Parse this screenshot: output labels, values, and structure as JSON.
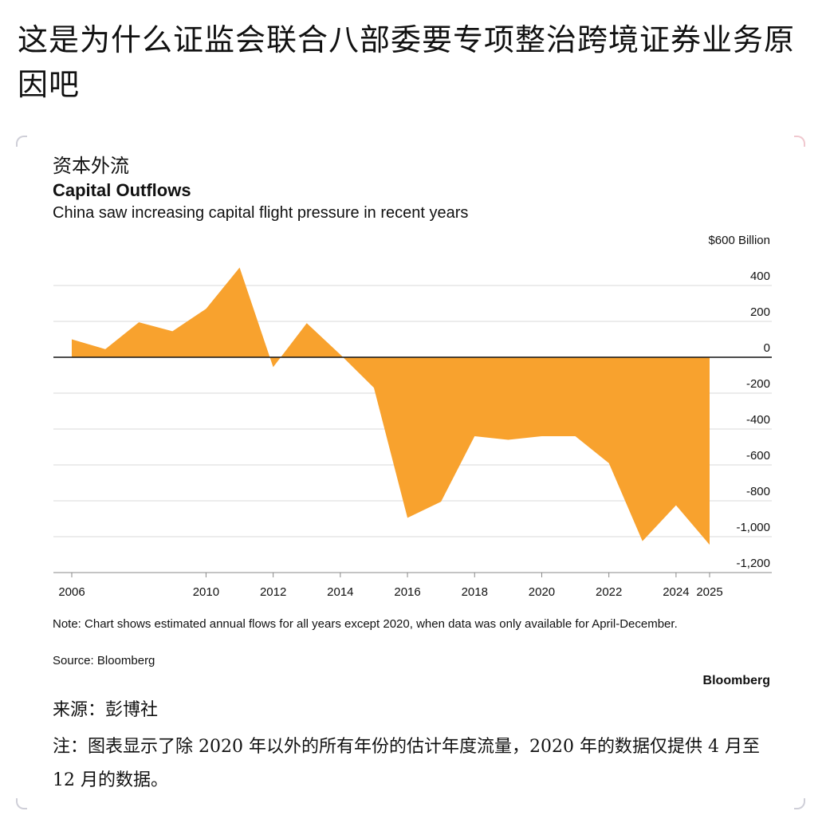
{
  "post": {
    "title": "这是为什么证监会联合八部委要专项整治跨境证券业务原因吧"
  },
  "image_text": {
    "zh_title": "资本外流",
    "zh_source": "来源：彭博社",
    "zh_note": "注：图表显示了除 2020 年以外的所有年份的估计年度流量，2020 年的数据仅提供 4 月至 12 月的数据。"
  },
  "colors": {
    "area_fill": "#F8A22E",
    "grid": "#d9d9d9",
    "zero_line": "#111111",
    "text": "#111111"
  },
  "chart_data": {
    "type": "area",
    "title": "Capital Outflows",
    "subtitle": "China saw increasing capital flight pressure in recent years",
    "unit_label": "$600 Billion",
    "ylim": [
      -1200,
      600
    ],
    "yticks": [
      600,
      400,
      200,
      0,
      -200,
      -400,
      -600,
      -800,
      -1000,
      -1200
    ],
    "ytick_labels": [
      "$600 Billion",
      "400",
      "200",
      "0",
      "-200",
      "-400",
      "-600",
      "-800",
      "-1,000",
      "-1,200"
    ],
    "xlim": [
      2006,
      2025
    ],
    "xticks": [
      2006,
      2010,
      2012,
      2014,
      2016,
      2018,
      2020,
      2022,
      2024,
      2025
    ],
    "xtick_labels": [
      "2006",
      "2010",
      "2012",
      "2014",
      "2016",
      "2018",
      "2020",
      "2022",
      "2024",
      "2025"
    ],
    "grid": "horizontal",
    "axis_side": "right",
    "series": [
      {
        "x": [
          2006,
          2007,
          2008,
          2009,
          2010,
          2011,
          2012,
          2013,
          2014,
          2015,
          2016,
          2017,
          2018,
          2019,
          2020,
          2021,
          2022,
          2023,
          2024,
          2025
        ],
        "values": [
          100,
          45,
          195,
          145,
          270,
          500,
          -55,
          190,
          15,
          -170,
          -895,
          -805,
          -440,
          -460,
          -440,
          -440,
          -590,
          -1025,
          -825,
          -1045
        ]
      }
    ],
    "note": "Note: Chart shows estimated annual flows for all years except 2020, when data was only available for April-December.",
    "source": "Source: Bloomberg",
    "brand": "Bloomberg"
  }
}
